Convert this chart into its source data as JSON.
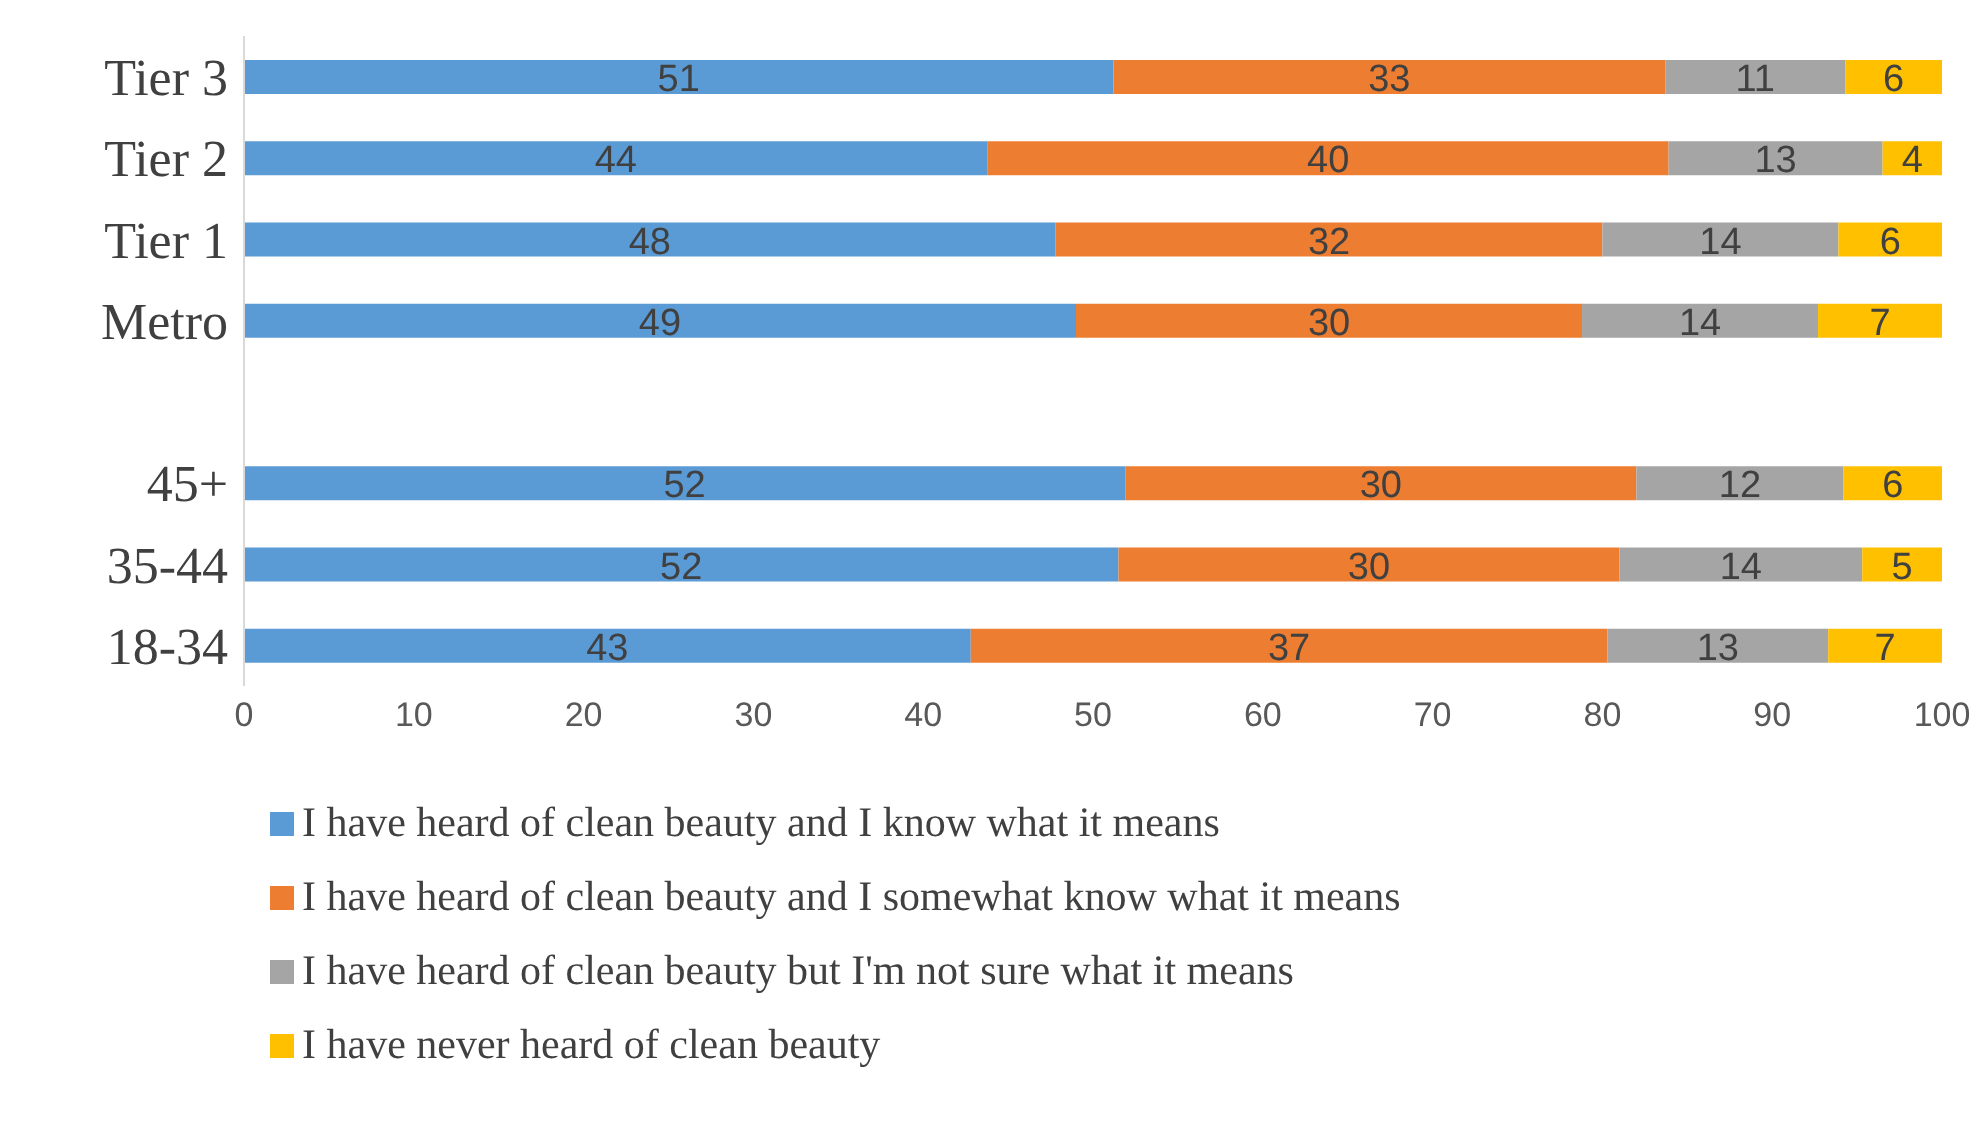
{
  "chart_data": {
    "type": "bar",
    "orientation": "horizontal",
    "stacked": true,
    "categories": [
      "Tier 3",
      "Tier 2",
      "Tier 1",
      "Metro",
      null,
      "45+",
      "35-44",
      "18-34"
    ],
    "series": [
      {
        "name": "I have heard of clean beauty and I know what it means",
        "color": "#5b9bd5",
        "values": [
          51.2,
          43.8,
          47.8,
          49.0,
          null,
          51.9,
          51.5,
          42.8
        ],
        "value_labels": [
          "51",
          "44",
          "48",
          "49",
          null,
          "52",
          "52",
          "43"
        ]
      },
      {
        "name": "I have heard of clean beauty and I somewhat know what it means",
        "color": "#ed7d31",
        "values": [
          32.5,
          40.1,
          32.2,
          29.8,
          null,
          30.1,
          29.5,
          37.5
        ],
        "value_labels": [
          "33",
          "40",
          "32",
          "30",
          null,
          "30",
          "30",
          "37"
        ]
      },
      {
        "name": "I have heard of clean beauty but I'm not sure what it means",
        "color": "#a5a5a5",
        "values": [
          10.6,
          12.6,
          13.9,
          13.9,
          null,
          12.2,
          14.3,
          13.0
        ],
        "value_labels": [
          "11",
          "13",
          "14",
          "14",
          null,
          "12",
          "14",
          "13"
        ]
      },
      {
        "name": "I have never heard of clean beauty",
        "color": "#ffc000",
        "values": [
          5.7,
          3.5,
          6.1,
          7.3,
          null,
          5.8,
          4.7,
          6.7
        ],
        "value_labels": [
          "6",
          "4",
          "6",
          "7",
          null,
          "6",
          "5",
          "7"
        ]
      }
    ],
    "xlim": [
      0,
      100
    ],
    "xticks": [
      0,
      10,
      20,
      30,
      40,
      50,
      60,
      70,
      80,
      90,
      100
    ],
    "legend": "bottom"
  }
}
